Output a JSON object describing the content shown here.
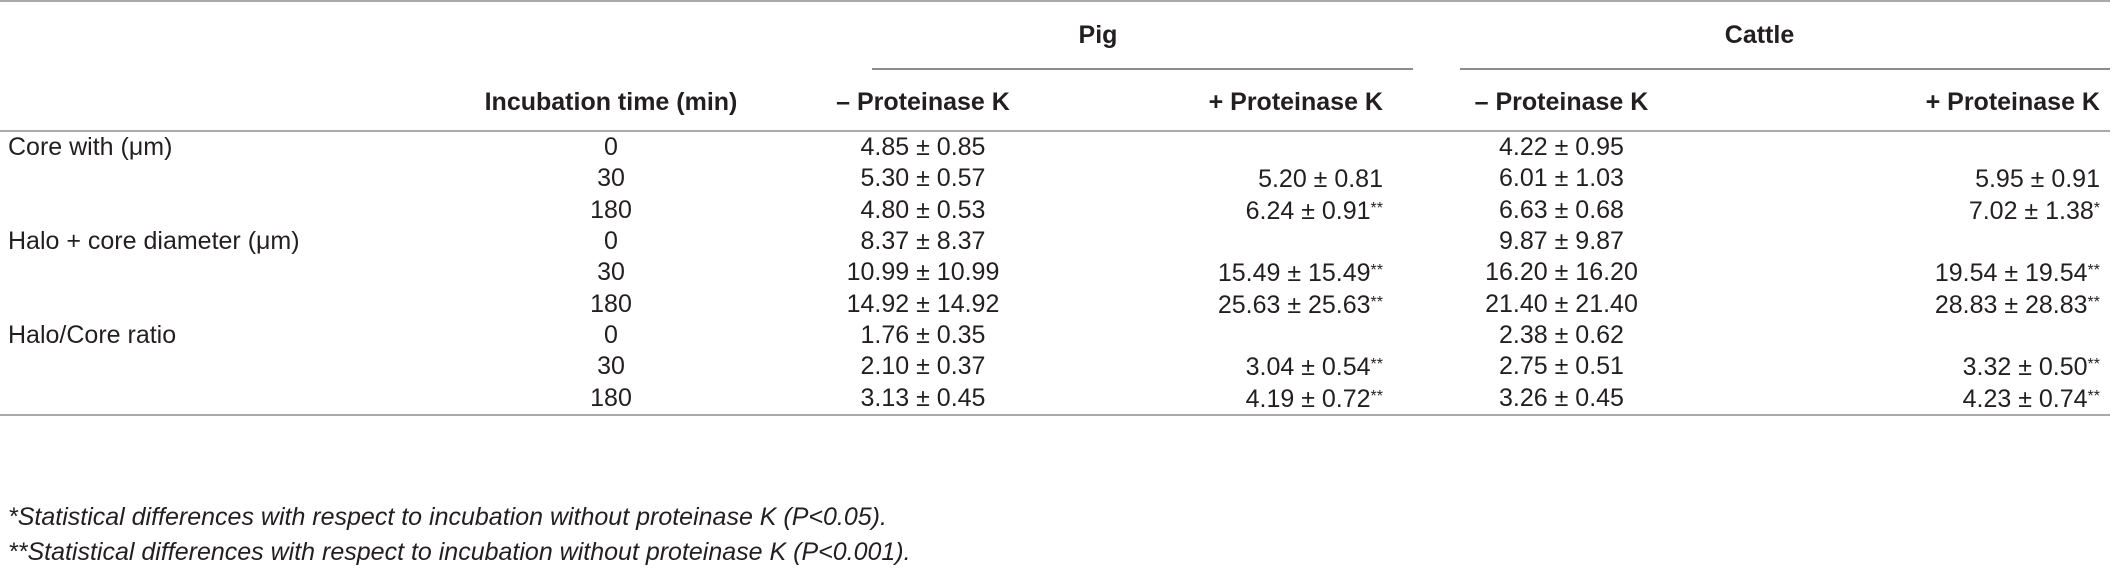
{
  "header": {
    "groups": {
      "pig": "Pig",
      "cattle": "Cattle"
    },
    "columns": {
      "time": "Incubation time (min)",
      "pig_minus": "– Proteinase K",
      "pig_plus": "+ Proteinase K",
      "cattle_minus": "– Proteinase K",
      "cattle_plus": "+ Proteinase K"
    }
  },
  "rows": [
    {
      "label": "Core with (μm)",
      "time": "0",
      "pig_minus": "4.85 ± 0.85",
      "pig_plus": "",
      "pig_plus_sig": "",
      "cattle_minus": "4.22 ± 0.95",
      "cattle_plus": "",
      "cattle_plus_sig": ""
    },
    {
      "label": "",
      "time": "30",
      "pig_minus": "5.30 ± 0.57",
      "pig_plus": "5.20 ± 0.81",
      "pig_plus_sig": "",
      "cattle_minus": "6.01 ± 1.03",
      "cattle_plus": "5.95 ± 0.91",
      "cattle_plus_sig": ""
    },
    {
      "label": "",
      "time": "180",
      "pig_minus": "4.80 ± 0.53",
      "pig_plus": "6.24 ± 0.91",
      "pig_plus_sig": "**",
      "cattle_minus": "6.63 ± 0.68",
      "cattle_plus": "7.02 ± 1.38",
      "cattle_plus_sig": "*"
    },
    {
      "label": "Halo + core diameter (μm)",
      "time": "0",
      "pig_minus": "8.37 ± 8.37",
      "pig_plus": "",
      "pig_plus_sig": "",
      "cattle_minus": "9.87 ± 9.87",
      "cattle_plus": "",
      "cattle_plus_sig": ""
    },
    {
      "label": "",
      "time": "30",
      "pig_minus": "10.99 ± 10.99",
      "pig_plus": "15.49 ± 15.49",
      "pig_plus_sig": "**",
      "cattle_minus": "16.20 ± 16.20",
      "cattle_plus": "19.54 ± 19.54",
      "cattle_plus_sig": "**"
    },
    {
      "label": "",
      "time": "180",
      "pig_minus": "14.92 ± 14.92",
      "pig_plus": "25.63 ± 25.63",
      "pig_plus_sig": "**",
      "cattle_minus": "21.40 ± 21.40",
      "cattle_plus": "28.83 ± 28.83",
      "cattle_plus_sig": "**"
    },
    {
      "label": "Halo/Core ratio",
      "time": "0",
      "pig_minus": "1.76 ± 0.35",
      "pig_plus": "",
      "pig_plus_sig": "",
      "cattle_minus": "2.38 ± 0.62",
      "cattle_plus": "",
      "cattle_plus_sig": ""
    },
    {
      "label": "",
      "time": "30",
      "pig_minus": "2.10 ± 0.37",
      "pig_plus": "3.04 ± 0.54",
      "pig_plus_sig": "**",
      "cattle_minus": "2.75 ± 0.51",
      "cattle_plus": "3.32 ± 0.50",
      "cattle_plus_sig": "**"
    },
    {
      "label": "",
      "time": "180",
      "pig_minus": "3.13 ± 0.45",
      "pig_plus": "4.19 ± 0.72",
      "pig_plus_sig": "**",
      "cattle_minus": "3.26 ± 0.45",
      "cattle_plus": "4.23 ± 0.74",
      "cattle_plus_sig": "**"
    }
  ],
  "footnotes": [
    "*Statistical differences with respect to incubation without proteinase K (P<0.05).",
    "**Statistical differences with respect to incubation without proteinase K (P<0.001)."
  ]
}
